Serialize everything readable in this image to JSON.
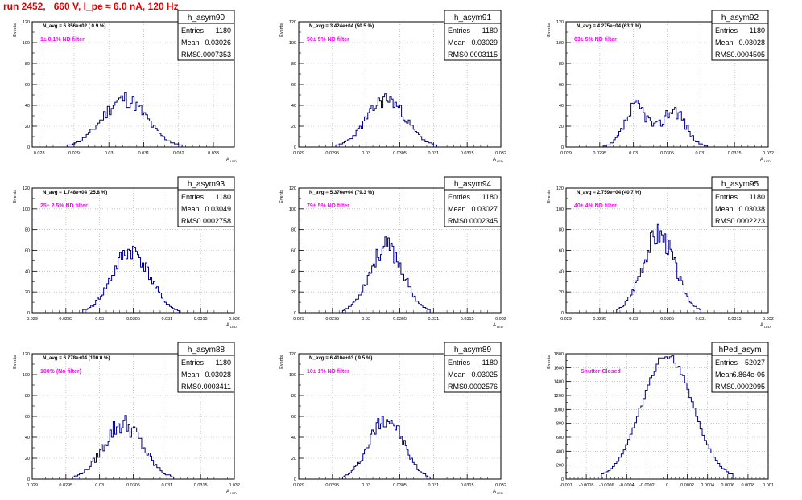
{
  "page": {
    "title": "run 2452,   660 V, I_pe ≈ 6.0 nA, 120 Hz"
  },
  "style": {
    "histogram_color": "#000080",
    "title_color": "#e00000",
    "annotation_color": "#ff00ff",
    "grid_color": "#aaaaaa"
  },
  "stat_labels": [
    "Entries",
    "Mean",
    "RMS"
  ],
  "chart_data": [
    {
      "type": "bar",
      "name": "h_asym90",
      "navg": "N_avg = 6.356e+02 ( 0.9 %)",
      "filter": "1± 0.1% ND filter",
      "ylabel": "Events",
      "xlabel": "A",
      "xlabel_sub": "LED",
      "xlim": [
        0.0278,
        0.0336
      ],
      "ylim": [
        0,
        120
      ],
      "xticks": [
        {
          "v": 0.028,
          "label": "0.028"
        },
        {
          "v": 0.029,
          "label": "0.029"
        },
        {
          "v": 0.03,
          "label": "0.03"
        },
        {
          "v": 0.031,
          "label": "0.031"
        },
        {
          "v": 0.032,
          "label": "0.032"
        },
        {
          "v": 0.033,
          "label": "0.033"
        }
      ],
      "yticks": [
        0,
        20,
        40,
        60,
        80,
        100,
        120
      ],
      "stats": {
        "entries": "1180",
        "mean": "0.03026",
        "rms": "0.0007353"
      },
      "hist": {
        "x0": 0.0288,
        "x1": 0.0321,
        "peak": 46,
        "noise": 0.18,
        "seed": 11
      }
    },
    {
      "type": "bar",
      "name": "h_asym91",
      "navg": "N_avg = 3.424e+04 (50.5 %)",
      "filter": "50± 5% ND filter",
      "ylabel": "Events",
      "xlabel": "A",
      "xlabel_sub": "LED",
      "xlim": [
        0.029,
        0.032
      ],
      "ylim": [
        0,
        120
      ],
      "xticks": [
        {
          "v": 0.029,
          "label": "0.029"
        },
        {
          "v": 0.0295,
          "label": "0.0295"
        },
        {
          "v": 0.03,
          "label": "0.03"
        },
        {
          "v": 0.0305,
          "label": "0.0305"
        },
        {
          "v": 0.031,
          "label": "0.031"
        },
        {
          "v": 0.0315,
          "label": "0.0315"
        },
        {
          "v": 0.032,
          "label": "0.032"
        }
      ],
      "yticks": [
        0,
        20,
        40,
        60,
        80,
        100,
        120
      ],
      "stats": {
        "entries": "1180",
        "mean": "0.03029",
        "rms": "0.0003115"
      },
      "hist": {
        "x0": 0.02955,
        "x1": 0.03105,
        "peak": 46,
        "noise": 0.16,
        "seed": 23
      }
    },
    {
      "type": "bar",
      "name": "h_asym92",
      "navg": "N_avg = 4.275e+04 (63.1 %)",
      "filter": "63± 5% ND filter",
      "ylabel": "Events",
      "xlabel": "A",
      "xlabel_sub": "LED",
      "xlim": [
        0.029,
        0.032
      ],
      "ylim": [
        0,
        120
      ],
      "xticks": [
        {
          "v": 0.029,
          "label": "0.029"
        },
        {
          "v": 0.0295,
          "label": "0.0295"
        },
        {
          "v": 0.03,
          "label": "0.03"
        },
        {
          "v": 0.0305,
          "label": "0.0305"
        },
        {
          "v": 0.031,
          "label": "0.031"
        },
        {
          "v": 0.0315,
          "label": "0.0315"
        },
        {
          "v": 0.032,
          "label": "0.032"
        }
      ],
      "yticks": [
        0,
        20,
        40,
        60,
        80,
        100,
        120
      ],
      "stats": {
        "entries": "1180",
        "mean": "0.03028",
        "rms": "0.0004505"
      },
      "hist": {
        "x0": 0.02955,
        "x1": 0.0311,
        "peak": 40,
        "noise": 0.22,
        "seed": 37,
        "bimodal": true
      }
    },
    {
      "type": "bar",
      "name": "h_asym93",
      "navg": "N_avg = 1.748e+04 (25.8 %)",
      "filter": "25± 2.5% ND filter",
      "ylabel": "Events",
      "xlabel": "A",
      "xlabel_sub": "LED",
      "xlim": [
        0.029,
        0.032
      ],
      "ylim": [
        0,
        120
      ],
      "xticks": [
        {
          "v": 0.029,
          "label": "0.029"
        },
        {
          "v": 0.0295,
          "label": "0.0295"
        },
        {
          "v": 0.03,
          "label": "0.03"
        },
        {
          "v": 0.0305,
          "label": "0.0305"
        },
        {
          "v": 0.031,
          "label": "0.031"
        },
        {
          "v": 0.0315,
          "label": "0.0315"
        },
        {
          "v": 0.032,
          "label": "0.032"
        }
      ],
      "yticks": [
        0,
        20,
        40,
        60,
        80,
        100,
        120
      ],
      "stats": {
        "entries": "1180",
        "mean": "0.03049",
        "rms": "0.0002758"
      },
      "hist": {
        "x0": 0.02975,
        "x1": 0.03118,
        "peak": 60,
        "noise": 0.16,
        "seed": 41
      }
    },
    {
      "type": "bar",
      "name": "h_asym94",
      "navg": "N_avg = 5.376e+04 (79.3 %)",
      "filter": "79± 5% ND filter",
      "ylabel": "Events",
      "xlabel": "A",
      "xlabel_sub": "LED",
      "xlim": [
        0.029,
        0.032
      ],
      "ylim": [
        0,
        120
      ],
      "xticks": [
        {
          "v": 0.029,
          "label": "0.029"
        },
        {
          "v": 0.0295,
          "label": "0.0295"
        },
        {
          "v": 0.03,
          "label": "0.03"
        },
        {
          "v": 0.0305,
          "label": "0.0305"
        },
        {
          "v": 0.031,
          "label": "0.031"
        },
        {
          "v": 0.0315,
          "label": "0.0315"
        },
        {
          "v": 0.032,
          "label": "0.032"
        }
      ],
      "yticks": [
        0,
        20,
        40,
        60,
        80,
        100,
        120
      ],
      "stats": {
        "entries": "1180",
        "mean": "0.03027",
        "rms": "0.0002345"
      },
      "hist": {
        "x0": 0.02965,
        "x1": 0.03095,
        "peak": 63,
        "noise": 0.16,
        "seed": 53
      }
    },
    {
      "type": "bar",
      "name": "h_asym95",
      "navg": "N_avg = 2.759e+04 (40.7 %)",
      "filter": "40± 4% ND filter",
      "ylabel": "Events",
      "xlabel": "A",
      "xlabel_sub": "LED",
      "xlim": [
        0.029,
        0.032
      ],
      "ylim": [
        0,
        120
      ],
      "xticks": [
        {
          "v": 0.029,
          "label": "0.029"
        },
        {
          "v": 0.0295,
          "label": "0.0295"
        },
        {
          "v": 0.03,
          "label": "0.03"
        },
        {
          "v": 0.0305,
          "label": "0.0305"
        },
        {
          "v": 0.031,
          "label": "0.031"
        },
        {
          "v": 0.0315,
          "label": "0.0315"
        },
        {
          "v": 0.032,
          "label": "0.032"
        }
      ],
      "yticks": [
        0,
        20,
        40,
        60,
        80,
        100,
        120
      ],
      "stats": {
        "entries": "1180",
        "mean": "0.03038",
        "rms": "0.0002223"
      },
      "hist": {
        "x0": 0.02975,
        "x1": 0.031,
        "peak": 76,
        "noise": 0.16,
        "seed": 67
      }
    },
    {
      "type": "bar",
      "name": "h_asym88",
      "navg": "N_avg = 6.778e+04 (100.0 %)",
      "filter": "100% (No filter)",
      "ylabel": "Events",
      "xlabel": "A",
      "xlabel_sub": "LED",
      "xlim": [
        0.029,
        0.032
      ],
      "ylim": [
        0,
        120
      ],
      "xticks": [
        {
          "v": 0.029,
          "label": "0.029"
        },
        {
          "v": 0.0295,
          "label": "0.0295"
        },
        {
          "v": 0.03,
          "label": "0.03"
        },
        {
          "v": 0.0305,
          "label": "0.0305"
        },
        {
          "v": 0.031,
          "label": "0.031"
        },
        {
          "v": 0.0315,
          "label": "0.0315"
        },
        {
          "v": 0.032,
          "label": "0.032"
        }
      ],
      "yticks": [
        0,
        20,
        40,
        60,
        80,
        100,
        120
      ],
      "stats": {
        "entries": "1180",
        "mean": "0.03028",
        "rms": "0.0003411"
      },
      "hist": {
        "x0": 0.0296,
        "x1": 0.0311,
        "peak": 53,
        "noise": 0.2,
        "seed": 79
      }
    },
    {
      "type": "bar",
      "name": "h_asym89",
      "navg": "N_avg = 6.410e+03 ( 9.5 %)",
      "filter": "10± 1% ND filter",
      "ylabel": "Events",
      "xlabel": "A",
      "xlabel_sub": "LED",
      "xlim": [
        0.029,
        0.032
      ],
      "ylim": [
        0,
        120
      ],
      "xticks": [
        {
          "v": 0.029,
          "label": "0.029"
        },
        {
          "v": 0.0295,
          "label": "0.0295"
        },
        {
          "v": 0.03,
          "label": "0.03"
        },
        {
          "v": 0.0305,
          "label": "0.0305"
        },
        {
          "v": 0.031,
          "label": "0.031"
        },
        {
          "v": 0.0315,
          "label": "0.0315"
        },
        {
          "v": 0.032,
          "label": "0.032"
        }
      ],
      "yticks": [
        0,
        20,
        40,
        60,
        80,
        100,
        120
      ],
      "stats": {
        "entries": "1180",
        "mean": "0.03025",
        "rms": "0.0002576"
      },
      "hist": {
        "x0": 0.02965,
        "x1": 0.03095,
        "peak": 59,
        "noise": 0.16,
        "seed": 97
      }
    },
    {
      "type": "bar",
      "name": "hPed_asym",
      "navg": "",
      "filter": "Shutter Closed",
      "ylabel": "Events",
      "xlabel": "",
      "xlabel_sub": "",
      "xlim": [
        -0.001,
        0.001
      ],
      "ylim": [
        0,
        1800
      ],
      "xticks": [
        {
          "v": -0.001,
          "label": "-0.001"
        },
        {
          "v": -0.0008,
          "label": "-0.0008"
        },
        {
          "v": -0.0006,
          "label": "-0.0006"
        },
        {
          "v": -0.0004,
          "label": "-0.0004"
        },
        {
          "v": -0.0002,
          "label": "-0.0002"
        },
        {
          "v": 0,
          "label": "0"
        },
        {
          "v": 0.0002,
          "label": "0.0002"
        },
        {
          "v": 0.0004,
          "label": "0.0004"
        },
        {
          "v": 0.0006,
          "label": "0.0006"
        },
        {
          "v": 0.0008,
          "label": "0.0008"
        },
        {
          "v": 0.001,
          "label": "0.001"
        }
      ],
      "yticks": [
        0,
        200,
        400,
        600,
        800,
        1000,
        1200,
        1400,
        1600,
        1800
      ],
      "stats": {
        "entries": "52027",
        "mean": "6.864e-06",
        "rms": "0.0002095"
      },
      "hist": {
        "x0": -0.00065,
        "x1": 0.00065,
        "peak": 1780,
        "noise": 0.03,
        "seed": 113
      }
    }
  ]
}
